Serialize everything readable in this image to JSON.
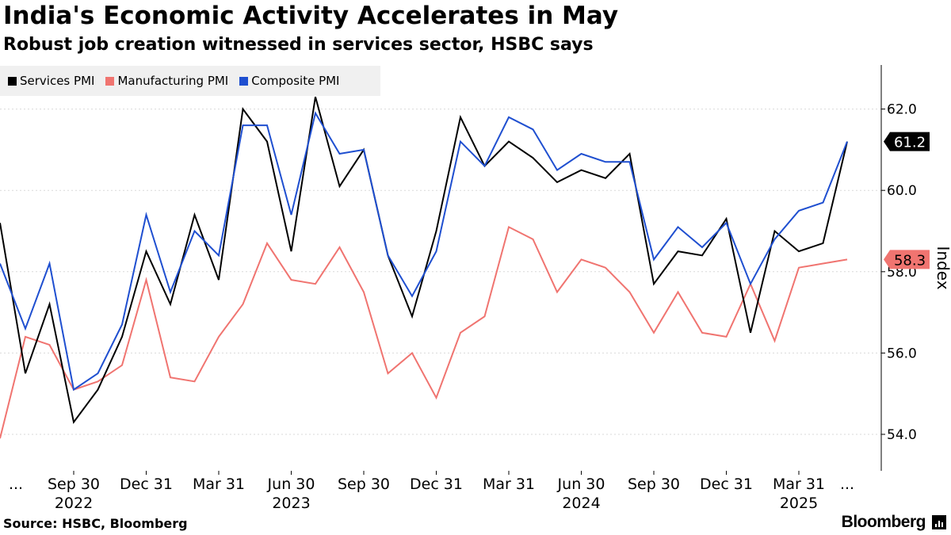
{
  "header": {
    "title": "India's Economic Activity Accelerates in May",
    "subtitle": "Robust job creation witnessed in services sector, HSBC says"
  },
  "footer": {
    "source": "Source: HSBC, Bloomberg",
    "brand": "Bloomberg"
  },
  "colors": {
    "services": "#000000",
    "manufacturing": "#f07470",
    "composite": "#1f4fd0"
  },
  "chart_data": {
    "type": "line",
    "title": "India's Economic Activity Accelerates in May",
    "ylabel": "Index",
    "ylim": [
      53.2,
      63.0
    ],
    "yticks": [
      54.0,
      56.0,
      58.0,
      60.0,
      62.0
    ],
    "ytick_labels": [
      "54.0",
      "56.0",
      "58.0",
      "60.0",
      "62.0"
    ],
    "x": [
      "2022-07",
      "2022-08",
      "2022-09",
      "2022-10",
      "2022-11",
      "2022-12",
      "2023-01",
      "2023-02",
      "2023-03",
      "2023-04",
      "2023-05",
      "2023-06",
      "2023-07",
      "2023-08",
      "2023-09",
      "2023-10",
      "2023-11",
      "2023-12",
      "2024-01",
      "2024-02",
      "2024-03",
      "2024-04",
      "2024-05",
      "2024-06",
      "2024-07",
      "2024-08",
      "2024-09",
      "2024-10",
      "2024-11",
      "2024-12",
      "2025-01",
      "2025-02",
      "2025-03",
      "2025-04",
      "2025-05"
    ],
    "xtick_labels": [
      {
        "label": "...",
        "year": ""
      },
      {
        "label": "Sep 30",
        "year": "2022"
      },
      {
        "label": "Dec 31",
        "year": ""
      },
      {
        "label": "Mar 31",
        "year": ""
      },
      {
        "label": "Jun 30",
        "year": "2023"
      },
      {
        "label": "Sep 30",
        "year": ""
      },
      {
        "label": "Dec 31",
        "year": ""
      },
      {
        "label": "Mar 31",
        "year": ""
      },
      {
        "label": "Jun 30",
        "year": "2024"
      },
      {
        "label": "Sep 30",
        "year": ""
      },
      {
        "label": "Dec 31",
        "year": ""
      },
      {
        "label": "Mar 31",
        "year": "2025"
      },
      {
        "label": "...",
        "year": ""
      }
    ],
    "series": [
      {
        "name": "Services PMI",
        "key": "services",
        "values": [
          55.5,
          57.2,
          54.3,
          55.1,
          56.4,
          58.5,
          57.2,
          59.4,
          57.8,
          62.0,
          61.2,
          58.5,
          62.3,
          60.1,
          61.0,
          58.4,
          56.9,
          59.0,
          61.8,
          60.6,
          61.2,
          60.8,
          60.2,
          60.5,
          60.3,
          60.9,
          57.7,
          58.5,
          58.4,
          59.3,
          56.5,
          59.0,
          58.5,
          58.7,
          61.2
        ]
      },
      {
        "name": "Manufacturing PMI",
        "key": "manufacturing",
        "values": [
          56.4,
          56.2,
          55.1,
          55.3,
          55.7,
          57.8,
          55.4,
          55.3,
          56.4,
          57.2,
          58.7,
          57.8,
          57.7,
          58.6,
          57.5,
          55.5,
          56.0,
          54.9,
          56.5,
          56.9,
          59.1,
          58.8,
          57.5,
          58.3,
          58.1,
          57.5,
          56.5,
          57.5,
          56.5,
          56.4,
          57.7,
          56.3,
          58.1,
          58.2,
          58.3
        ]
      },
      {
        "name": "Composite PMI",
        "key": "composite",
        "values": [
          56.6,
          58.2,
          55.1,
          55.5,
          56.7,
          59.4,
          57.5,
          59.0,
          58.4,
          61.6,
          61.6,
          59.4,
          61.9,
          60.9,
          61.0,
          58.4,
          57.4,
          58.5,
          61.2,
          60.6,
          61.8,
          61.5,
          60.5,
          60.9,
          60.7,
          60.7,
          58.3,
          59.1,
          58.6,
          59.2,
          57.7,
          58.8,
          59.5,
          59.7,
          61.2
        ]
      }
    ],
    "leading_values": {
      "services": 59.2,
      "manufacturing": 53.9,
      "composite": 58.2
    },
    "last_labels": {
      "services": "61.2",
      "manufacturing": "58.3"
    }
  }
}
